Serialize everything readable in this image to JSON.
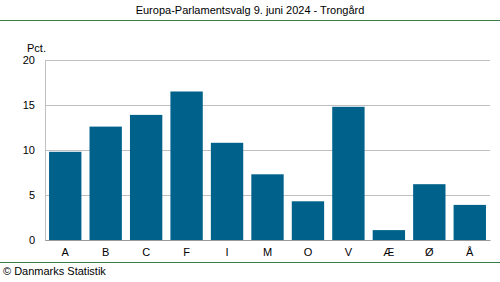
{
  "chart_data": {
    "type": "bar",
    "title": "Europa-Parlamentsvalg 9. juni 2024 - Trongård",
    "y_label": "Pct.",
    "source": "© Danmarks Statistik",
    "categories": [
      "A",
      "B",
      "C",
      "F",
      "I",
      "M",
      "O",
      "V",
      "Æ",
      "Ø",
      "Å"
    ],
    "values": [
      9.8,
      12.6,
      13.9,
      16.5,
      10.8,
      7.3,
      4.3,
      14.8,
      1.1,
      6.2,
      3.9
    ],
    "color": "#00628b",
    "ylim": [
      0,
      20
    ],
    "yticks": [
      0,
      5,
      10,
      15,
      20
    ],
    "grid": true
  }
}
